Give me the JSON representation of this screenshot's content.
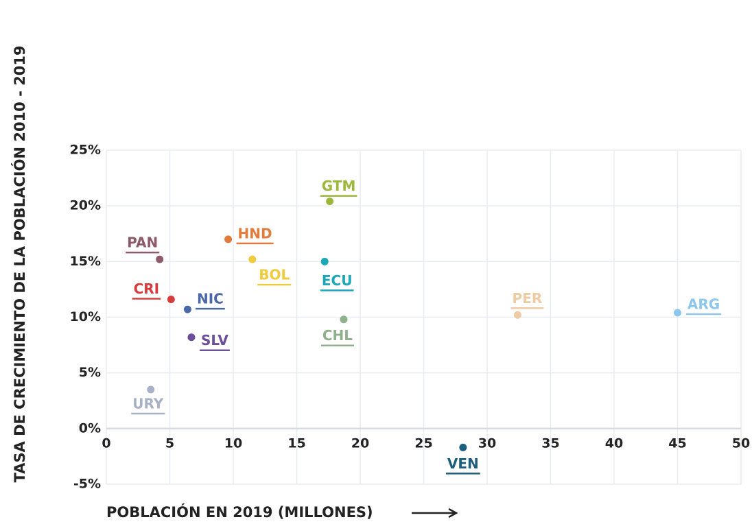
{
  "chart_data": {
    "type": "scatter",
    "xlabel": "POBLACIÓN EN 2019 (MILLONES)",
    "ylabel": "TASA DE CRECIMIENTO DE LA POBLACIÓN 2010 - 2019",
    "xlim": [
      0,
      50
    ],
    "xticks": [
      0,
      5,
      10,
      15,
      20,
      25,
      30,
      35,
      40,
      45,
      50
    ],
    "ylim": [
      -5,
      25
    ],
    "yticks": [
      {
        "value": -5,
        "label": "-5%"
      },
      {
        "value": 0,
        "label": "0%"
      },
      {
        "value": 5,
        "label": "5%"
      },
      {
        "value": 10,
        "label": "10%"
      },
      {
        "value": 15,
        "label": "15%"
      },
      {
        "value": 20,
        "label": "20%"
      },
      {
        "value": 25,
        "label": "25%"
      }
    ],
    "grid": true,
    "series": [
      {
        "name": "PAN",
        "color": "#8e5a6a",
        "x": 4.2,
        "y": 15.2
      },
      {
        "name": "CRI",
        "color": "#d73c3c",
        "x": 5.1,
        "y": 11.6
      },
      {
        "name": "NIC",
        "color": "#4a68a8",
        "x": 6.4,
        "y": 10.7
      },
      {
        "name": "SLV",
        "color": "#6b4f9a",
        "x": 6.7,
        "y": 8.2
      },
      {
        "name": "URY",
        "color": "#a7b0c4",
        "x": 3.5,
        "y": 3.5
      },
      {
        "name": "HND",
        "color": "#e07b3c",
        "x": 9.6,
        "y": 17.0
      },
      {
        "name": "BOL",
        "color": "#efcb3d",
        "x": 11.5,
        "y": 15.2
      },
      {
        "name": "GTM",
        "color": "#9cb83a",
        "x": 17.6,
        "y": 20.4
      },
      {
        "name": "ECU",
        "color": "#1aa7b8",
        "x": 17.2,
        "y": 15.0
      },
      {
        "name": "CHL",
        "color": "#8fb08c",
        "x": 18.7,
        "y": 9.8
      },
      {
        "name": "VEN",
        "color": "#1e5e7d",
        "x": 28.1,
        "y": -1.7
      },
      {
        "name": "PER",
        "color": "#efcba4",
        "x": 32.4,
        "y": 10.2
      },
      {
        "name": "ARG",
        "color": "#8cc7ee",
        "x": 45.0,
        "y": 10.4
      }
    ]
  }
}
